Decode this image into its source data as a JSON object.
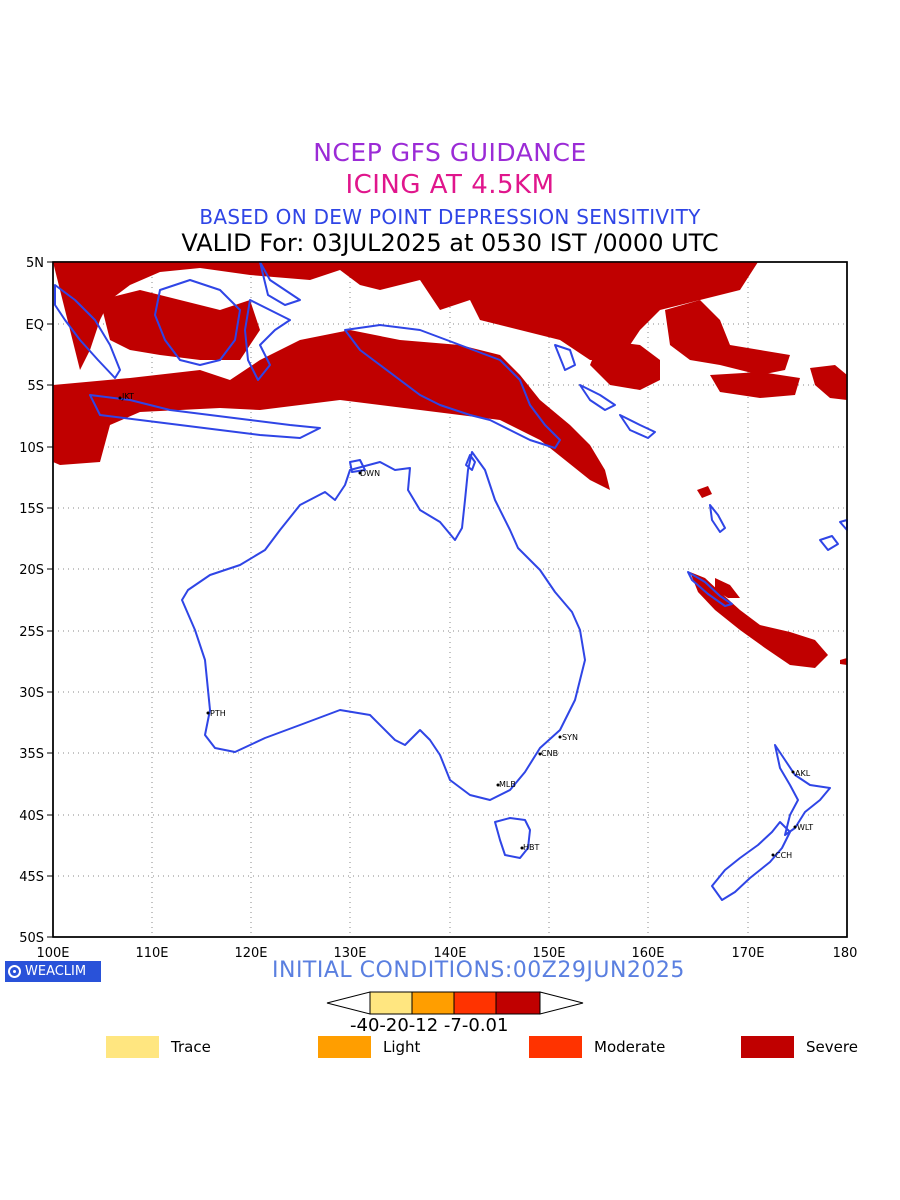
{
  "titles": {
    "line1": "NCEP GFS GUIDANCE",
    "line2": "ICING AT 4.5KM",
    "line3": "BASED ON DEW POINT DEPRESSION SENSITIVITY",
    "line4": "VALID For: 03JUL2025 at 0530 IST /0000 UTC"
  },
  "axes": {
    "lon_ticks": [
      "100E",
      "110E",
      "120E",
      "130E",
      "140E",
      "150E",
      "160E",
      "170E",
      "180"
    ],
    "lat_ticks": [
      "5N",
      "EQ",
      "5S",
      "10S",
      "15S",
      "20S",
      "25S",
      "30S",
      "35S",
      "40S",
      "45S",
      "50S"
    ]
  },
  "cities": [
    {
      "code": "JKT"
    },
    {
      "code": "DWN"
    },
    {
      "code": "PTH"
    },
    {
      "code": "SYN"
    },
    {
      "code": "CNB"
    },
    {
      "code": "MLB"
    },
    {
      "code": "HBT"
    },
    {
      "code": "AKL"
    },
    {
      "code": "WLT"
    },
    {
      "code": "CCH"
    }
  ],
  "footer": {
    "initial_conditions": "INITIAL CONDITIONS:00Z29JUN2025",
    "logo_text": "WEACLIM"
  },
  "colorbar": {
    "labels": "-40-20-12 -7-0.01",
    "colors": [
      "#ffe680",
      "#ff9e00",
      "#ff3300",
      "#c00000"
    ]
  },
  "legend": [
    {
      "label": "Trace",
      "color": "#ffe680"
    },
    {
      "label": "Light",
      "color": "#ff9e00"
    },
    {
      "label": "Moderate",
      "color": "#ff3300"
    },
    {
      "label": "Severe",
      "color": "#c00000"
    }
  ],
  "colors": {
    "coast": "#2f45e6",
    "severe": "#c00000"
  }
}
